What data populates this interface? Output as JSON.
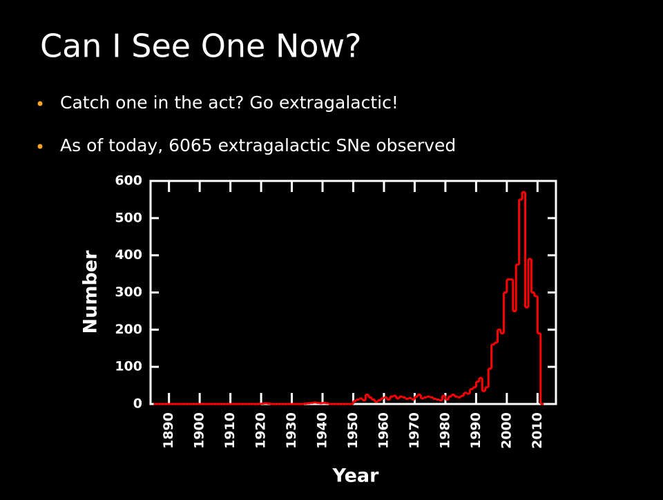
{
  "slide": {
    "title": "Can I See One Now?",
    "bullets": [
      "Catch one in the act? Go extragalactic!",
      "As of today, 6065 extragalactic SNe observed"
    ]
  },
  "chart_data": {
    "type": "step",
    "xlabel": "Year",
    "ylabel": "Number",
    "x": [
      1885,
      1886,
      1887,
      1888,
      1889,
      1890,
      1891,
      1892,
      1893,
      1894,
      1895,
      1896,
      1897,
      1898,
      1899,
      1900,
      1901,
      1902,
      1903,
      1904,
      1905,
      1906,
      1907,
      1908,
      1909,
      1910,
      1911,
      1912,
      1913,
      1914,
      1915,
      1916,
      1917,
      1918,
      1919,
      1920,
      1921,
      1922,
      1923,
      1924,
      1925,
      1926,
      1927,
      1928,
      1929,
      1930,
      1931,
      1932,
      1933,
      1934,
      1935,
      1936,
      1937,
      1938,
      1939,
      1940,
      1941,
      1942,
      1943,
      1944,
      1945,
      1946,
      1947,
      1948,
      1949,
      1950,
      1951,
      1952,
      1953,
      1954,
      1955,
      1956,
      1957,
      1958,
      1959,
      1960,
      1961,
      1962,
      1963,
      1964,
      1965,
      1966,
      1967,
      1968,
      1969,
      1970,
      1971,
      1972,
      1973,
      1974,
      1975,
      1976,
      1977,
      1978,
      1979,
      1980,
      1981,
      1982,
      1983,
      1984,
      1985,
      1986,
      1987,
      1988,
      1989,
      1990,
      1991,
      1992,
      1993,
      1994,
      1995,
      1996,
      1997,
      1998,
      1999,
      2000,
      2001,
      2002,
      2003,
      2004,
      2005,
      2006,
      2007,
      2008,
      2009,
      2010,
      2011
    ],
    "series": [
      {
        "color": "#ff0000",
        "values": [
          0,
          0,
          0,
          0,
          0,
          0,
          0,
          0,
          0,
          0,
          0,
          0,
          0,
          0,
          0,
          0,
          0,
          0,
          0,
          0,
          0,
          0,
          0,
          0,
          0,
          0,
          0,
          0,
          0,
          0,
          0,
          0,
          0,
          0,
          0,
          1,
          2,
          1,
          0,
          0,
          0,
          0,
          0,
          0,
          0,
          0,
          0,
          0,
          0,
          1,
          2,
          3,
          4,
          3,
          2,
          3,
          2,
          0,
          0,
          0,
          0,
          0,
          0,
          0,
          0,
          8,
          12,
          15,
          10,
          25,
          18,
          12,
          6,
          10,
          15,
          18,
          12,
          20,
          22,
          15,
          20,
          18,
          14,
          16,
          12,
          20,
          25,
          15,
          18,
          20,
          18,
          14,
          12,
          10,
          22,
          12,
          20,
          25,
          20,
          18,
          22,
          30,
          28,
          40,
          45,
          60,
          70,
          35,
          45,
          95,
          160,
          165,
          200,
          190,
          300,
          335,
          335,
          250,
          375,
          550,
          570,
          260,
          390,
          300,
          290,
          190,
          0
        ]
      }
    ],
    "xlim": [
      1884,
      2016
    ],
    "ylim": [
      0,
      600
    ],
    "xticks": [
      1890,
      1900,
      1910,
      1920,
      1930,
      1940,
      1950,
      1960,
      1970,
      1980,
      1990,
      2000,
      2010
    ],
    "yticks": [
      0,
      100,
      200,
      300,
      400,
      500,
      600
    ]
  }
}
